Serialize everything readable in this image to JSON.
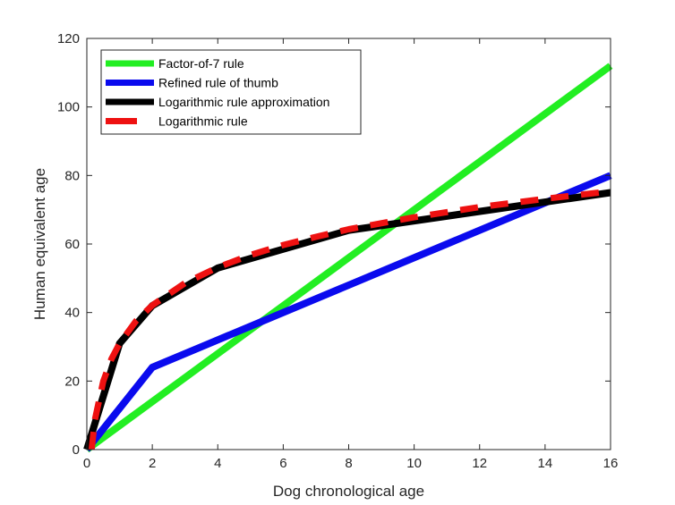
{
  "chart_data": {
    "type": "line",
    "title": "",
    "xlabel": "Dog chronological age",
    "ylabel": "Human equivalent age",
    "xlim": [
      0,
      16
    ],
    "ylim": [
      0,
      120
    ],
    "xticks": [
      0,
      2,
      4,
      6,
      8,
      10,
      12,
      14,
      16
    ],
    "yticks": [
      0,
      20,
      40,
      60,
      80,
      100,
      120
    ],
    "grid": false,
    "legend_position": "top-left",
    "series": [
      {
        "name": "Factor-of-7 rule",
        "color": "#22ee22",
        "style": "solid",
        "x": [
          0,
          16
        ],
        "y": [
          0,
          112
        ]
      },
      {
        "name": "Refined rule of thumb",
        "color": "#0a0aee",
        "style": "solid",
        "x": [
          0,
          2,
          16
        ],
        "y": [
          0,
          24,
          80
        ]
      },
      {
        "name": "Logarithmic rule approximation",
        "color": "#000000",
        "style": "solid",
        "x": [
          0,
          1,
          2,
          4,
          8,
          16
        ],
        "y": [
          0,
          31,
          42,
          53,
          64,
          75
        ]
      },
      {
        "name": "Logarithmic rule",
        "color": "#ee1111",
        "style": "dashed",
        "formula": "16*ln(x)+31",
        "x": [
          0.144,
          0.25,
          0.5,
          0.75,
          1,
          1.5,
          2,
          3,
          4,
          5,
          6,
          7,
          8,
          10,
          12,
          14,
          16
        ],
        "y": [
          0,
          8.8,
          19.9,
          26.4,
          31,
          37.5,
          42.1,
          48.6,
          53.2,
          56.8,
          59.7,
          62.1,
          64.3,
          67.8,
          70.8,
          73.2,
          75.4
        ]
      }
    ]
  }
}
